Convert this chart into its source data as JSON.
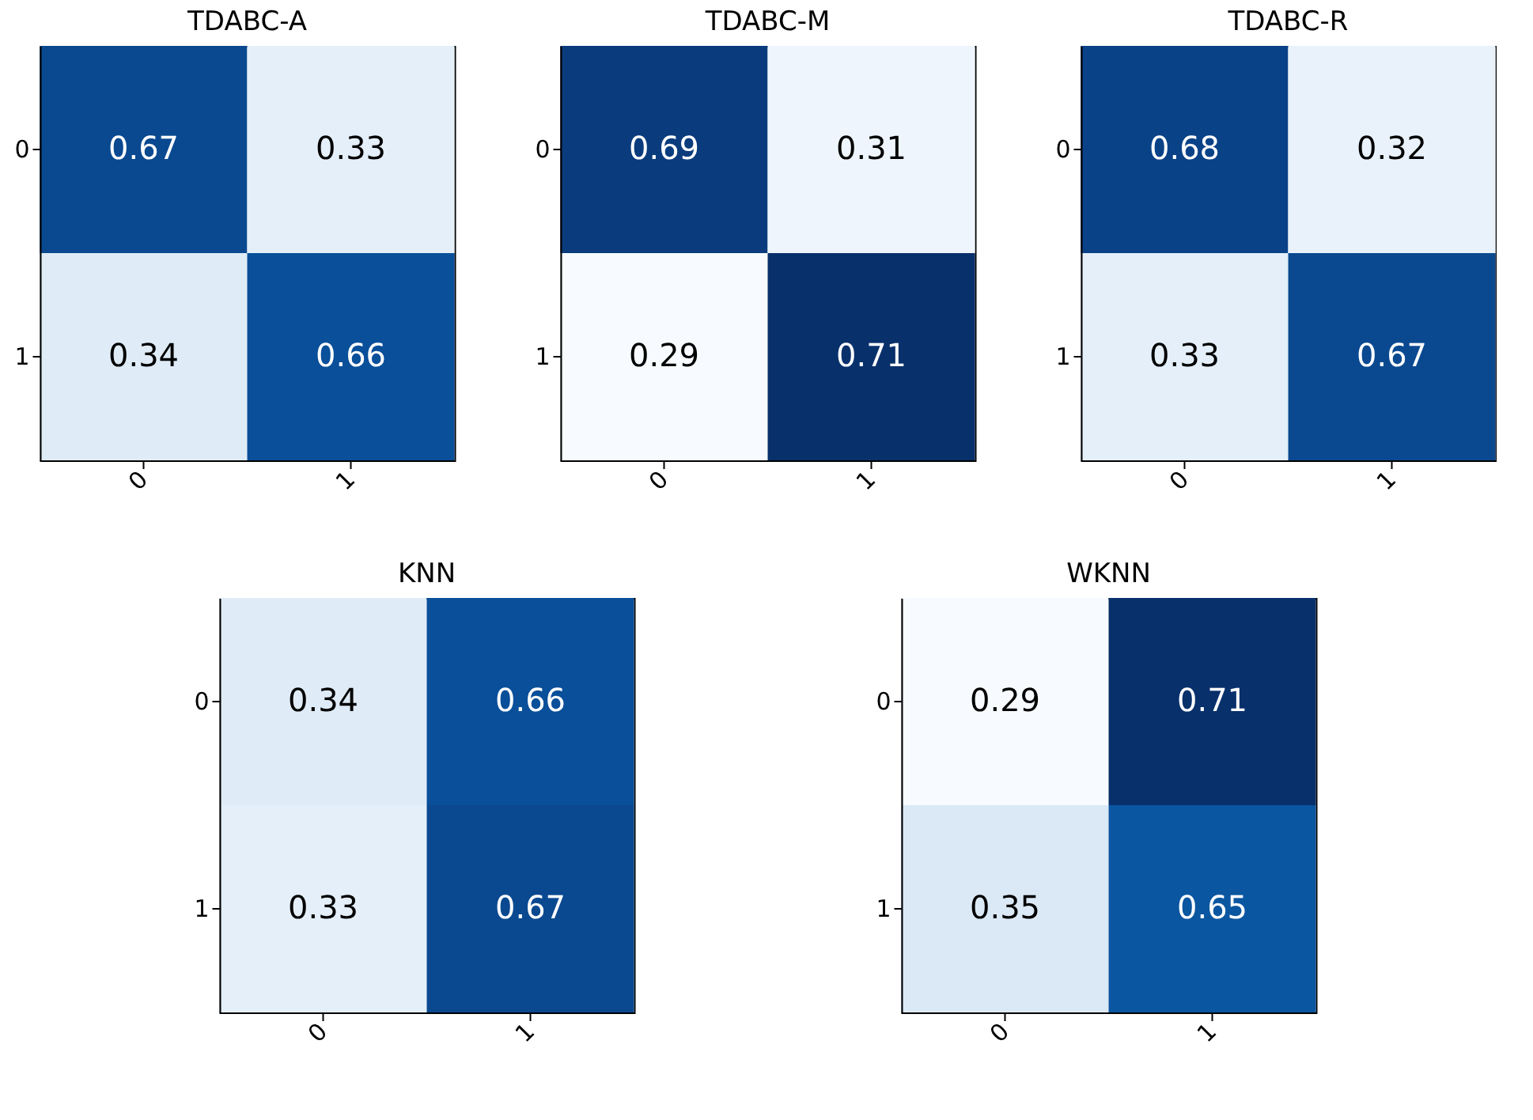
{
  "chart_data": [
    {
      "type": "heatmap",
      "data_labels": true,
      "title": "TDABC-A",
      "categories": [
        "0",
        "1"
      ],
      "y_categories": [
        "0",
        "1"
      ],
      "cells": [
        [
          0.67,
          0.33
        ],
        [
          0.34,
          0.66
        ]
      ]
    },
    {
      "type": "heatmap",
      "data_labels": true,
      "title": "TDABC-M",
      "categories": [
        "0",
        "1"
      ],
      "y_categories": [
        "0",
        "1"
      ],
      "cells": [
        [
          0.69,
          0.31
        ],
        [
          0.29,
          0.71
        ]
      ]
    },
    {
      "type": "heatmap",
      "data_labels": true,
      "title": "TDABC-R",
      "categories": [
        "0",
        "1"
      ],
      "y_categories": [
        "0",
        "1"
      ],
      "cells": [
        [
          0.68,
          0.32
        ],
        [
          0.33,
          0.67
        ]
      ]
    },
    {
      "type": "heatmap",
      "data_labels": true,
      "title": "KNN",
      "categories": [
        "0",
        "1"
      ],
      "y_categories": [
        "0",
        "1"
      ],
      "cells": [
        [
          0.34,
          0.66
        ],
        [
          0.33,
          0.67
        ]
      ]
    },
    {
      "type": "heatmap",
      "data_labels": true,
      "title": "WKNN",
      "categories": [
        "0",
        "1"
      ],
      "y_categories": [
        "0",
        "1"
      ],
      "cells": [
        [
          0.29,
          0.71
        ],
        [
          0.35,
          0.65
        ]
      ]
    }
  ]
}
